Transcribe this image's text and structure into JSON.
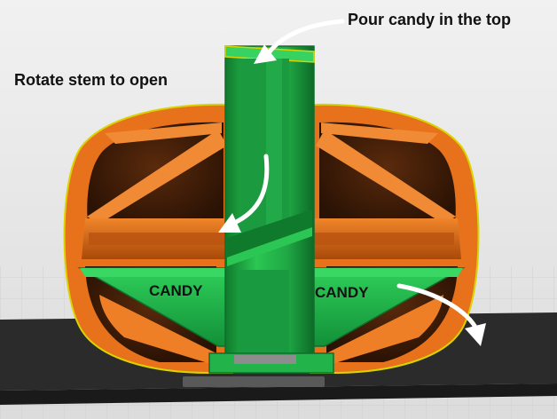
{
  "annotations": {
    "pour": "Pour candy in the top",
    "rotate": "Rotate stem to open",
    "candy_left": "CANDY",
    "candy_right": "CANDY"
  },
  "colors": {
    "background": "#e9e9e9",
    "grid_line": "#cfcfcf",
    "platform": "#2b2b2b",
    "shell_orange": "#e8711c",
    "shell_dark": "#7a3206",
    "interior_brown": "#3a1a08",
    "stem_green": "#22b34a",
    "stem_dark": "#0f6e2a",
    "outline": "#d8d400",
    "arrow": "#ffffff"
  },
  "icons": [
    "curved-arrow-icon"
  ]
}
